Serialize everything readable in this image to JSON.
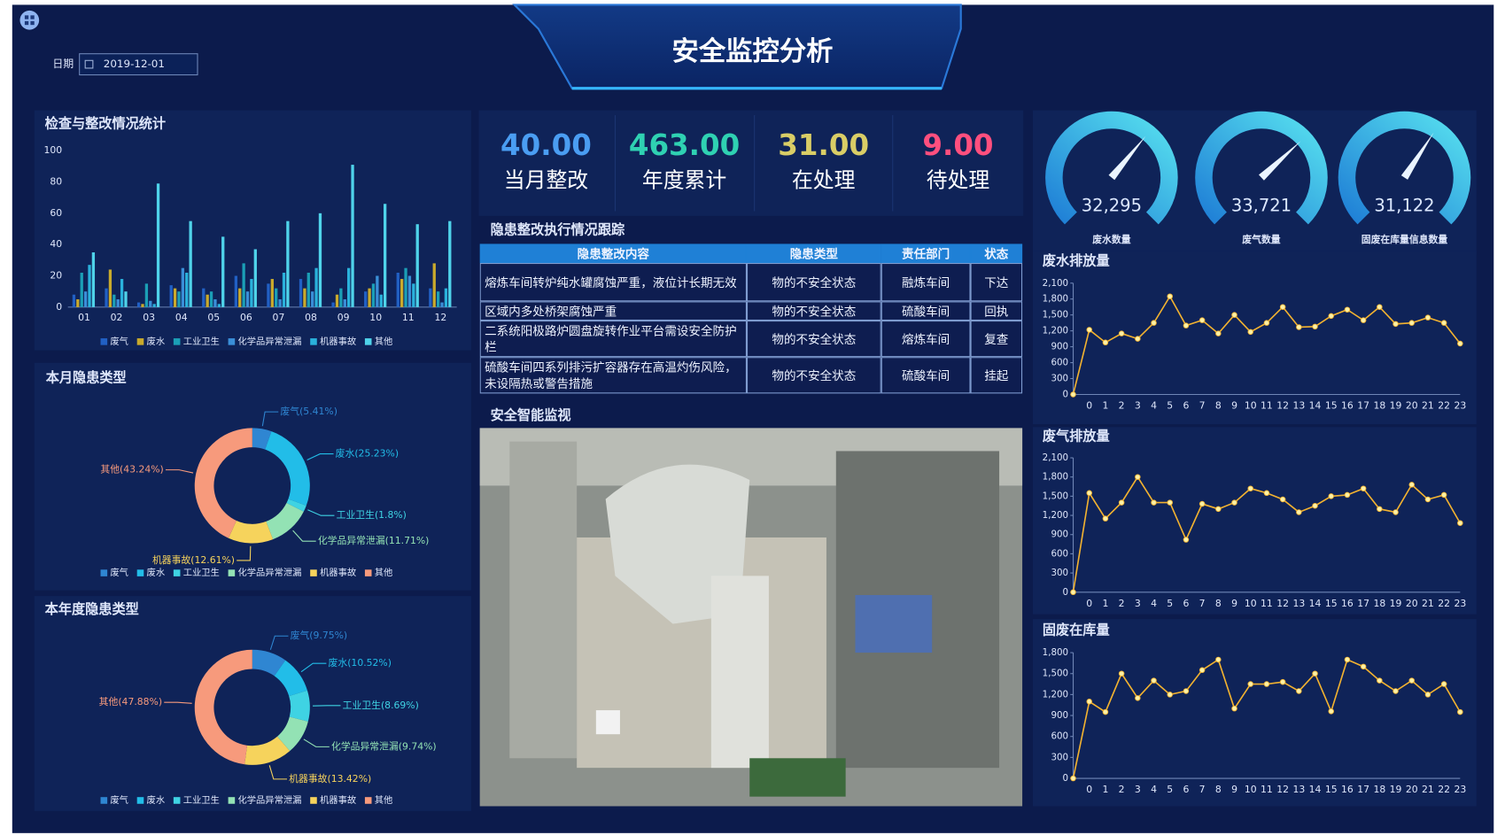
{
  "header": {
    "title": "安全监控分析",
    "date_label": "日期",
    "date": "2019-12-01"
  },
  "kpis": [
    {
      "value": "40.00",
      "label": "当月整改",
      "color": "#4a9df2"
    },
    {
      "value": "463.00",
      "label": "年度累计",
      "color": "#2fd1b2"
    },
    {
      "value": "31.00",
      "label": "在处理",
      "color": "#d9cd66"
    },
    {
      "value": "9.00",
      "label": "待处理",
      "color": "#ff4f7e"
    }
  ],
  "table": {
    "title": "隐患整改执行情况跟踪",
    "columns": [
      "隐患整改内容",
      "隐患类型",
      "责任部门",
      "状态"
    ],
    "rows": [
      [
        "熔炼车间转炉纯水罐腐蚀严重，液位计长期无效",
        "物的不安全状态",
        "融炼车间",
        "下达"
      ],
      [
        "区域内多处桥架腐蚀严重",
        "物的不安全状态",
        "硫酸车间",
        "回执"
      ],
      [
        "二系统阳极路炉圆盘旋转作业平台需设安全防护栏",
        "物的不安全状态",
        "熔炼车间",
        "复查"
      ],
      [
        "硫酸车间四系列排污扩容器存在高温灼伤风险，未设隔热或警告措施",
        "物的不安全状态",
        "硫酸车间",
        "挂起"
      ]
    ]
  },
  "monitor": {
    "title": "安全智能监视"
  },
  "chart_data": [
    {
      "type": "bar",
      "title": "检查与整改情况统计",
      "categories": [
        "01",
        "02",
        "03",
        "04",
        "05",
        "06",
        "07",
        "08",
        "09",
        "10",
        "11",
        "12"
      ],
      "series": [
        {
          "name": "废气",
          "color": "#2160c4",
          "values": [
            8,
            12,
            3,
            14,
            12,
            20,
            15,
            18,
            3,
            10,
            22,
            12
          ]
        },
        {
          "name": "废水",
          "color": "#c9aa2c",
          "values": [
            5,
            24,
            2,
            12,
            8,
            12,
            18,
            12,
            8,
            12,
            18,
            28
          ]
        },
        {
          "name": "工业卫生",
          "color": "#1b9fb6",
          "values": [
            22,
            8,
            15,
            10,
            10,
            28,
            12,
            22,
            12,
            15,
            25,
            10
          ]
        },
        {
          "name": "化学品异常泄漏",
          "color": "#3a8fd8",
          "values": [
            10,
            5,
            4,
            25,
            5,
            10,
            5,
            10,
            5,
            20,
            20,
            3
          ]
        },
        {
          "name": "机器事故",
          "color": "#2ab2dc",
          "values": [
            27,
            18,
            2,
            22,
            2,
            18,
            22,
            25,
            25,
            8,
            15,
            12
          ]
        },
        {
          "name": "其他",
          "color": "#4fd3ea",
          "values": [
            35,
            10,
            79,
            55,
            45,
            37,
            55,
            60,
            91,
            66,
            53,
            55
          ]
        }
      ],
      "ylim": [
        0,
        100
      ],
      "yticks": [
        0,
        20,
        40,
        60,
        80,
        100
      ],
      "grid": false
    },
    {
      "type": "donut",
      "title": "本月隐患类型",
      "categories": [
        "废气",
        "废水",
        "工业卫生",
        "化学品异常泄漏",
        "机器事故",
        "其他"
      ],
      "values": [
        5.41,
        25.23,
        1.8,
        11.71,
        12.61,
        43.24
      ],
      "value_labels": [
        "废气(5.41%)",
        "废水(25.23%)",
        "工业卫生(1.8%)",
        "化学品异常泄漏(11.71%)",
        "机器事故(12.61%)",
        "其他(43.24%)"
      ],
      "colors": [
        "#2f86d2",
        "#22bde8",
        "#3fd3e3",
        "#93e2b4",
        "#f6d35c",
        "#f79a7c"
      ]
    },
    {
      "type": "donut",
      "title": "本年度隐患类型",
      "categories": [
        "废气",
        "废水",
        "工业卫生",
        "化学品异常泄漏",
        "机器事故",
        "其他"
      ],
      "values": [
        9.75,
        10.52,
        8.69,
        9.74,
        13.42,
        47.88
      ],
      "value_labels": [
        "废气(9.75%)",
        "废水(10.52%)",
        "工业卫生(8.69%)",
        "化学品异常泄漏(9.74%)",
        "机器事故(13.42%)",
        "其他(47.88%)"
      ],
      "colors": [
        "#2f86d2",
        "#22bde8",
        "#3fd3e3",
        "#93e2b4",
        "#f6d35c",
        "#f79a7c"
      ]
    },
    {
      "type": "gauge",
      "title": "废水数量",
      "values": [
        32295
      ],
      "value_labels": [
        "32,295"
      ],
      "ylim": [
        0,
        50000
      ],
      "color": "#2cbde9"
    },
    {
      "type": "gauge",
      "title": "废气数量",
      "values": [
        33721
      ],
      "value_labels": [
        "33,721"
      ],
      "ylim": [
        0,
        50000
      ],
      "color": "#2cbde9"
    },
    {
      "type": "gauge",
      "title": "固废在库量信息数量",
      "values": [
        31122
      ],
      "value_labels": [
        "31,122"
      ],
      "ylim": [
        0,
        50000
      ],
      "color": "#2cbde9"
    },
    {
      "type": "line",
      "title": "废水排放量",
      "categories": [
        null,
        "0",
        "1",
        "2",
        "3",
        "4",
        "5",
        "6",
        "7",
        "8",
        "9",
        "10",
        "11",
        "12",
        "13",
        "14",
        "15",
        "16",
        "17",
        "18",
        "19",
        "20",
        "21",
        "22",
        "23"
      ],
      "values": [
        0,
        1220,
        980,
        1150,
        1050,
        1350,
        1850,
        1300,
        1400,
        1150,
        1500,
        1180,
        1350,
        1650,
        1270,
        1280,
        1480,
        1600,
        1400,
        1650,
        1330,
        1350,
        1450,
        1350,
        960
      ],
      "ylim": [
        0,
        2100
      ],
      "yticks": [
        0,
        300,
        600,
        900,
        {
          "value": 1200,
          "label": "1,200"
        },
        {
          "value": 1500,
          "label": "1,500"
        },
        {
          "value": 1800,
          "label": "1,800"
        },
        {
          "value": 2100,
          "label": "2,100"
        }
      ],
      "color": "#f2b230",
      "point_color": "#fff1a6"
    },
    {
      "type": "line",
      "title": "废气排放量",
      "categories": [
        null,
        "0",
        "1",
        "2",
        "3",
        "4",
        "5",
        "6",
        "7",
        "8",
        "9",
        "10",
        "11",
        "12",
        "13",
        "14",
        "15",
        "16",
        "17",
        "18",
        "19",
        "20",
        "21",
        "22",
        "23"
      ],
      "values": [
        0,
        1550,
        1150,
        1400,
        1800,
        1400,
        1400,
        820,
        1380,
        1300,
        1400,
        1620,
        1550,
        1450,
        1250,
        1350,
        1500,
        1520,
        1620,
        1300,
        1250,
        1680,
        1450,
        1520,
        1080
      ],
      "ylim": [
        0,
        2100
      ],
      "yticks": [
        0,
        300,
        600,
        900,
        {
          "value": 1200,
          "label": "1,200"
        },
        {
          "value": 1500,
          "label": "1,500"
        },
        {
          "value": 1800,
          "label": "1,800"
        },
        {
          "value": 2100,
          "label": "2,100"
        }
      ],
      "color": "#f2b230",
      "point_color": "#fff1a6"
    },
    {
      "type": "line",
      "title": "固废在库量",
      "categories": [
        null,
        "0",
        "1",
        "2",
        "3",
        "4",
        "5",
        "6",
        "7",
        "8",
        "9",
        "10",
        "11",
        "12",
        "13",
        "14",
        "15",
        "16",
        "17",
        "18",
        "19",
        "20",
        "21",
        "22",
        "23"
      ],
      "values": [
        0,
        1100,
        950,
        1500,
        1150,
        1400,
        1200,
        1250,
        1550,
        1700,
        1000,
        1350,
        1350,
        1380,
        1250,
        1500,
        960,
        1700,
        1600,
        1400,
        1250,
        1400,
        1200,
        1350,
        950
      ],
      "ylim": [
        0,
        1800
      ],
      "yticks": [
        0,
        300,
        600,
        900,
        {
          "value": 1200,
          "label": "1,200"
        },
        {
          "value": 1500,
          "label": "1,500"
        },
        {
          "value": 1800,
          "label": "1,800"
        }
      ],
      "color": "#f2b230",
      "point_color": "#fff1a6"
    }
  ]
}
